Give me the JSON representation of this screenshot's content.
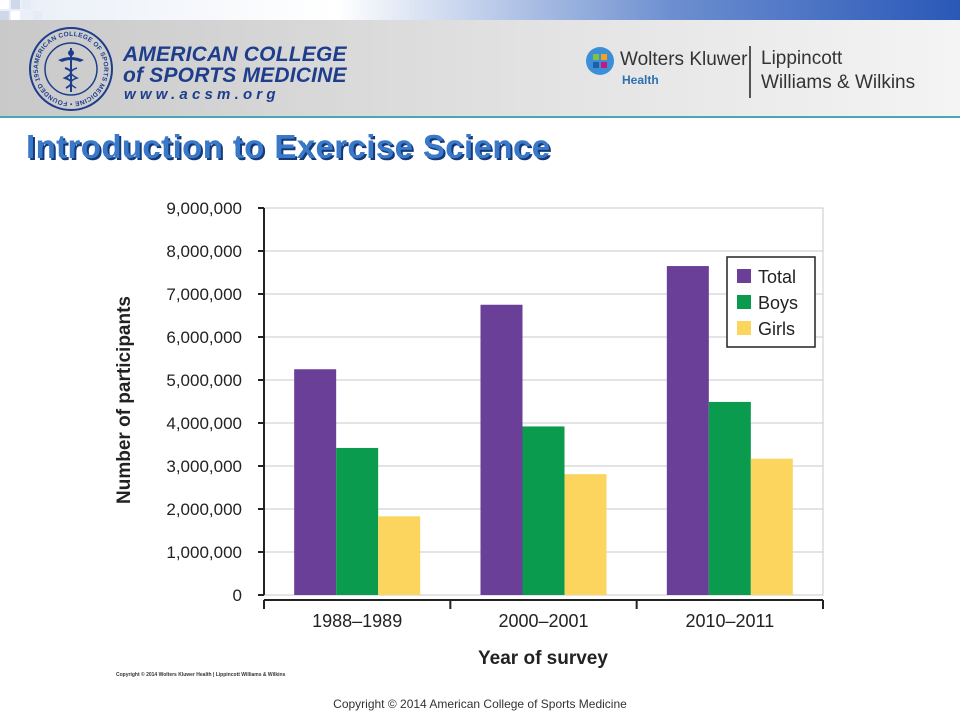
{
  "header": {
    "org_name_line1": "AMERICAN COLLEGE",
    "org_name_line2": "of SPORTS MEDICINE",
    "org_url": "www.acsm.org",
    "seal_text": "AMERICAN COLLEGE OF SPORTS MEDICINE • FOUNDED 1954 •",
    "publisher_name": "Wolters Kluwer",
    "publisher_sub": "Health",
    "imprint_line1": "Lippincott",
    "imprint_line2": "Williams & Wilkins"
  },
  "slide": {
    "title": "Introduction to Exercise Science"
  },
  "chart_data": {
    "type": "bar",
    "title": "",
    "xlabel": "Year of survey",
    "ylabel": "Number of participants",
    "categories": [
      "1988–1989",
      "2000–2001",
      "2010–2011"
    ],
    "series": [
      {
        "name": "Total",
        "values": [
          5250000,
          6750000,
          7650000
        ]
      },
      {
        "name": "Boys",
        "values": [
          3420000,
          3920000,
          4490000
        ]
      },
      {
        "name": "Girls",
        "values": [
          1830000,
          2810000,
          3170000
        ]
      }
    ],
    "ylim": [
      0,
      9000000
    ],
    "yticks": [
      "0",
      "1,000,000",
      "2,000,000",
      "3,000,000",
      "4,000,000",
      "5,000,000",
      "6,000,000",
      "7,000,000",
      "8,000,000",
      "9,000,000"
    ],
    "grid": true,
    "legend_position": "top-right"
  },
  "colors": {
    "total": "#6a3f97",
    "boys": "#0a9b4f",
    "girls": "#fcd55e",
    "title": "#3a78c8"
  },
  "figure_copyright": "Copyright © 2014 Wolters Kluwer Health | Lippincott Williams & Wilkins",
  "footer_copyright": "Copyright © 2014 American College of Sports Medicine"
}
